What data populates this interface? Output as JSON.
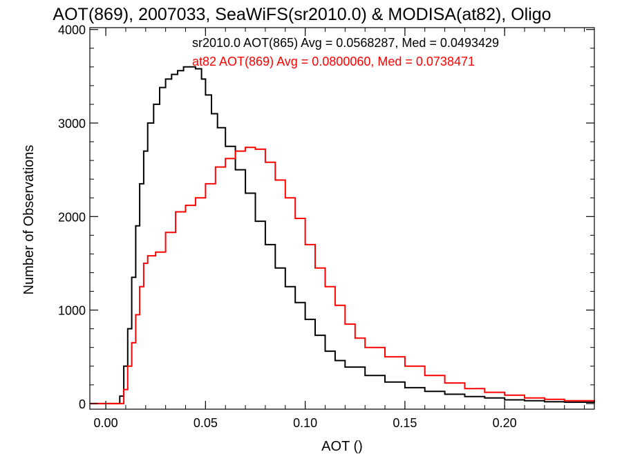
{
  "chart_data": {
    "type": "line",
    "title": "AOT(869), 2007033, SeaWiFS(sr2010.0) & MODISA(at82), Oligo",
    "xlabel": "AOT ()",
    "ylabel": "Number of Observations",
    "xlim": [
      -0.008,
      0.245
    ],
    "ylim": [
      -60,
      4020
    ],
    "x_ticks": [
      0.0,
      0.05,
      0.1,
      0.15,
      0.2
    ],
    "x_tick_labels": [
      "0.00",
      "0.05",
      "0.10",
      "0.15",
      "0.20"
    ],
    "y_ticks": [
      0,
      1000,
      2000,
      3000,
      4000
    ],
    "y_tick_labels": [
      "0",
      "1000",
      "2000",
      "3000",
      "4000"
    ],
    "grid": false,
    "step": true,
    "annotations": [
      {
        "text": "sr2010.0 AOT(865) Avg = 0.0568287, Med = 0.0493429",
        "color": "#000000"
      },
      {
        "text": "at82 AOT(869) Avg = 0.0800060, Med = 0.0738471",
        "color": "#ff0000"
      }
    ],
    "series": [
      {
        "color": "#000000",
        "x": [
          -0.008,
          0.004,
          0.007,
          0.009,
          0.011,
          0.013,
          0.015,
          0.017,
          0.019,
          0.021,
          0.024,
          0.027,
          0.03,
          0.033,
          0.036,
          0.039,
          0.042,
          0.045,
          0.048,
          0.05,
          0.053,
          0.056,
          0.06,
          0.065,
          0.07,
          0.075,
          0.08,
          0.085,
          0.09,
          0.095,
          0.1,
          0.105,
          0.11,
          0.115,
          0.12,
          0.13,
          0.14,
          0.15,
          0.16,
          0.17,
          0.18,
          0.19,
          0.2,
          0.21,
          0.22,
          0.23,
          0.245
        ],
        "y": [
          0,
          0,
          80,
          400,
          800,
          1350,
          1900,
          2350,
          2700,
          3000,
          3200,
          3380,
          3470,
          3520,
          3560,
          3600,
          3600,
          3580,
          3470,
          3300,
          3100,
          2950,
          2750,
          2500,
          2250,
          1950,
          1700,
          1450,
          1250,
          1080,
          900,
          730,
          560,
          460,
          390,
          300,
          230,
          170,
          130,
          100,
          75,
          60,
          40,
          30,
          20,
          15,
          10
        ]
      },
      {
        "color": "#ff0000",
        "x": [
          -0.008,
          0.007,
          0.009,
          0.011,
          0.013,
          0.015,
          0.017,
          0.019,
          0.021,
          0.025,
          0.03,
          0.035,
          0.04,
          0.045,
          0.05,
          0.055,
          0.06,
          0.065,
          0.07,
          0.075,
          0.08,
          0.085,
          0.09,
          0.095,
          0.1,
          0.105,
          0.11,
          0.115,
          0.12,
          0.125,
          0.13,
          0.14,
          0.15,
          0.16,
          0.17,
          0.18,
          0.19,
          0.2,
          0.21,
          0.22,
          0.23,
          0.245
        ],
        "y": [
          0,
          0,
          150,
          400,
          650,
          950,
          1250,
          1500,
          1580,
          1620,
          1830,
          2050,
          2120,
          2200,
          2350,
          2530,
          2620,
          2700,
          2740,
          2720,
          2580,
          2390,
          2200,
          1980,
          1700,
          1450,
          1250,
          1050,
          850,
          700,
          600,
          500,
          400,
          300,
          220,
          160,
          120,
          90,
          60,
          45,
          30,
          20
        ]
      }
    ]
  }
}
